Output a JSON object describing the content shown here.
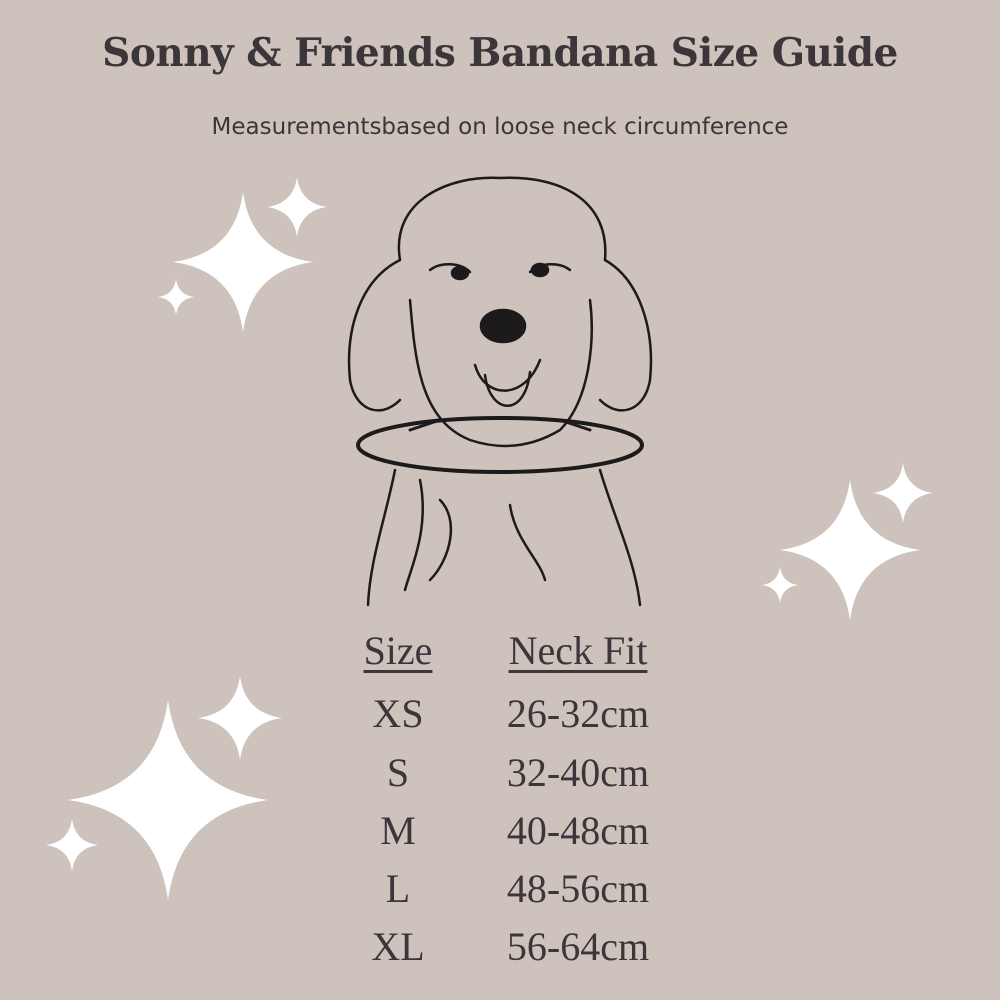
{
  "title": "Sonny & Friends Bandana Size Guide",
  "subtitle": "Measurementsbased on loose neck circumference",
  "colors": {
    "background": "#cdc3bc",
    "text": "#3a3639",
    "sparkle": "#ffffff"
  },
  "illustration": "dog-head-line-drawing-with-neck-measure-ring",
  "table": {
    "headers": {
      "size": "Size",
      "neck": "Neck Fit"
    },
    "rows": [
      {
        "size": "XS",
        "neck": "26-32cm"
      },
      {
        "size": "S",
        "neck": "32-40cm"
      },
      {
        "size": "M",
        "neck": "40-48cm"
      },
      {
        "size": "L",
        "neck": "48-56cm"
      },
      {
        "size": "XL",
        "neck": "56-64cm"
      }
    ]
  }
}
